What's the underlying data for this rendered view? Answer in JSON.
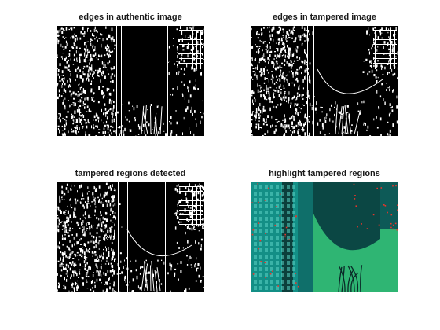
{
  "figure": {
    "panels": [
      {
        "title": "edges in authentic image",
        "kind": "edges",
        "variant": "authentic"
      },
      {
        "title": "edges in tampered image",
        "kind": "edges",
        "variant": "tampered"
      },
      {
        "title": "tampered regions detected",
        "kind": "edges",
        "variant": "detected"
      },
      {
        "title": "highlight tampered regions",
        "kind": "highlight",
        "variant": "highlight"
      }
    ],
    "colors": {
      "background": "#ffffff",
      "edge_background": "#000000",
      "edge_foreground": "#ffffff",
      "highlight_teal": "#1aa89a",
      "highlight_green": "#2fb573",
      "highlight_dark": "#0c3f3c",
      "highlight_red": "#e8352b"
    }
  }
}
